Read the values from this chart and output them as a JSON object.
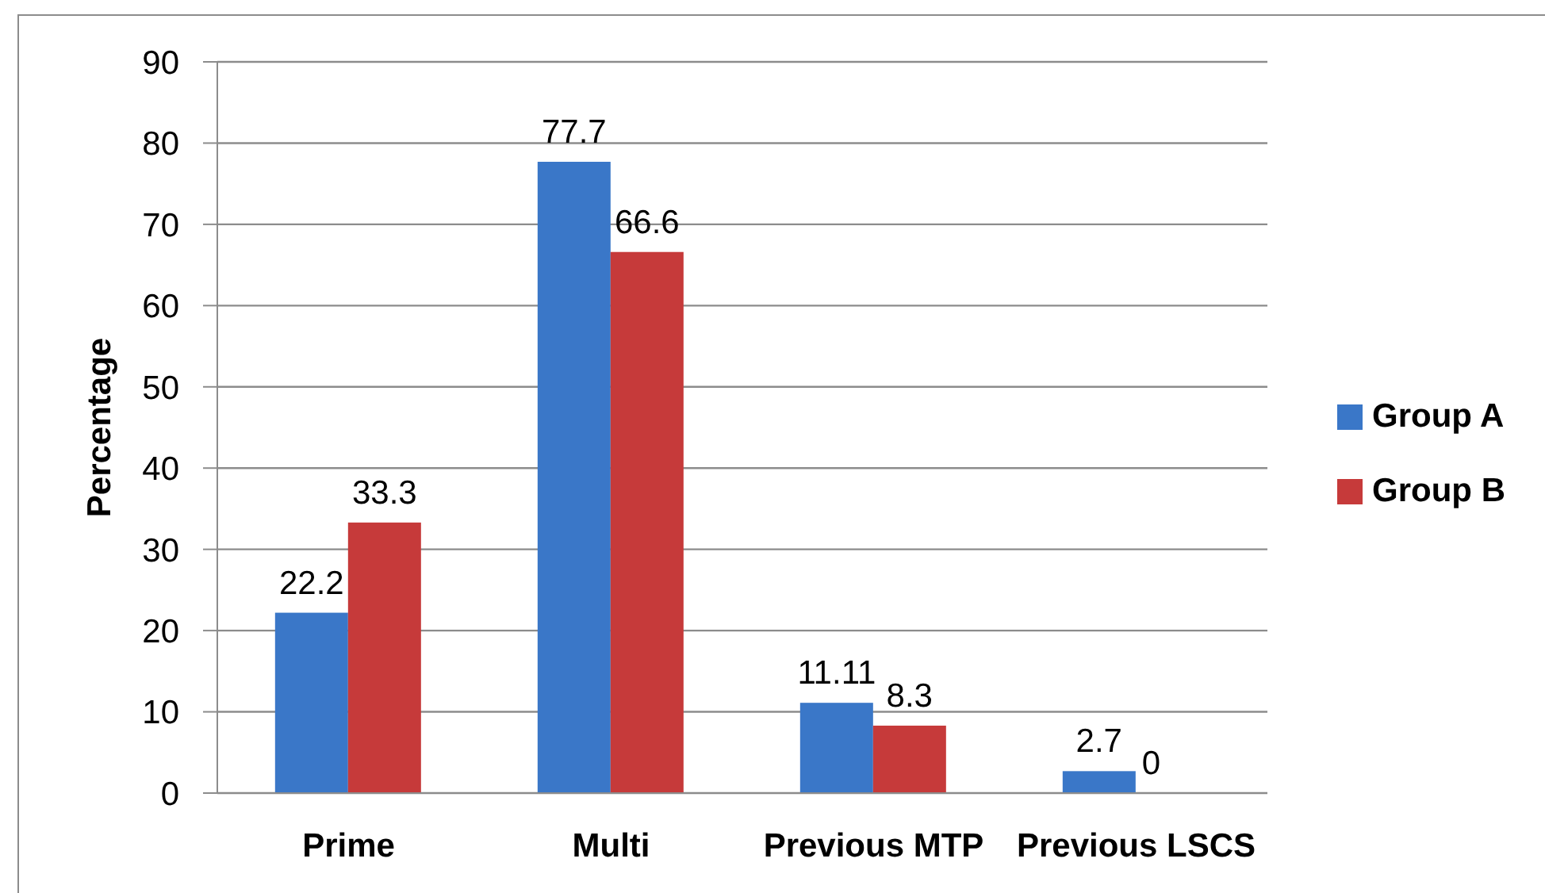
{
  "chart_data": {
    "type": "bar",
    "ylabel": "Percentage",
    "categories": [
      "Prime",
      "Multi",
      "Previous MTP",
      "Previous LSCS"
    ],
    "series": [
      {
        "name": "Group A",
        "color": "#3a77c8",
        "values": [
          22.2,
          77.7,
          11.11,
          2.7
        ]
      },
      {
        "name": "Group B",
        "color": "#c63a3a",
        "values": [
          33.3,
          66.6,
          8.3,
          0
        ]
      }
    ],
    "ylim": [
      0,
      90
    ],
    "yticks": [
      0,
      10,
      20,
      30,
      40,
      50,
      60,
      70,
      80,
      90
    ],
    "grid": "y",
    "legend": "right",
    "data_labels": true
  }
}
